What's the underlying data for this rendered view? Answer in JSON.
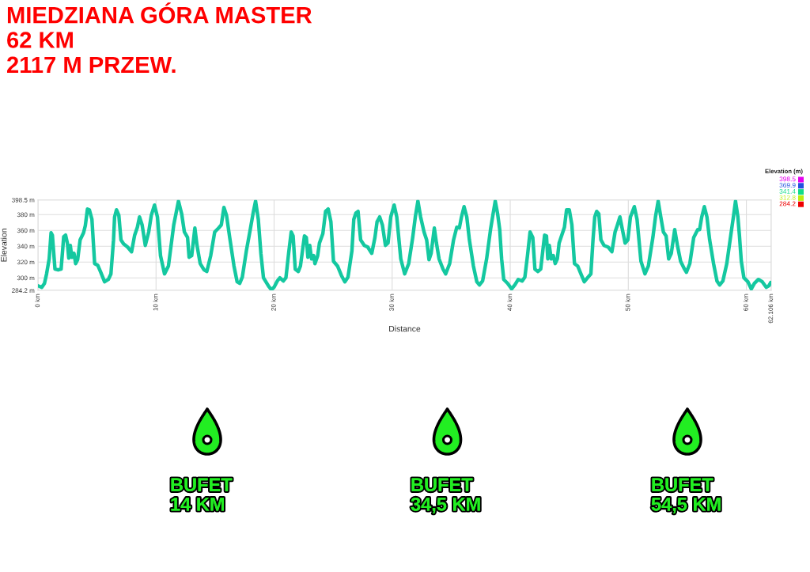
{
  "chart_data": {
    "type": "line",
    "title": "MIEDZIANA GÓRA MASTER\n62 KM\n2117 M PRZEW.",
    "xlabel": "Distance",
    "ylabel": "Elevation",
    "clabel": "Elevation (m)",
    "annotations": [
      "BUFET\n14 KM",
      "BUFET\n34,5 KM",
      "BUFET\n54,5 KM"
    ],
    "x": [
      0,
      0.32,
      0.55,
      0.73,
      0.95,
      1.11,
      1.22,
      1.44,
      1.71,
      1.96,
      2.18,
      2.34,
      2.49,
      2.61,
      2.74,
      2.87,
      3.05,
      3.19,
      3.36,
      3.57,
      3.86,
      4.01,
      4.19,
      4.35,
      4.57,
      4.8,
      5.06,
      5.29,
      5.64,
      5.96,
      6.18,
      6.4,
      6.49,
      6.65,
      6.85,
      7.03,
      7.25,
      7.59,
      7.93,
      8.19,
      8.42,
      8.6,
      8.82,
      9.09,
      9.38,
      9.6,
      9.87,
      10.12,
      10.38,
      10.72,
      11.05,
      11.5,
      11.9,
      12.17,
      12.4,
      12.67,
      12.8,
      13.02,
      13.29,
      13.47,
      13.74,
      14.07,
      14.3,
      14.63,
      14.97,
      15.3,
      15.53,
      15.75,
      15.97,
      16.24,
      16.6,
      16.87,
      17.09,
      17.31,
      17.65,
      17.98,
      18.25,
      18.43,
      18.66,
      18.88,
      19.1,
      19.55,
      19.77,
      19.99,
      20.27,
      20.49,
      20.78,
      21.0,
      21.23,
      21.45,
      21.61,
      21.79,
      22.05,
      22.23,
      22.57,
      22.73,
      22.86,
      23.02,
      23.17,
      23.35,
      23.46,
      23.69,
      23.84,
      24.13,
      24.36,
      24.58,
      24.81,
      25.03,
      25.37,
      25.7,
      25.99,
      26.26,
      26.59,
      26.75,
      26.93,
      27.11,
      27.33,
      27.64,
      27.93,
      28.27,
      28.54,
      28.72,
      28.94,
      29.17,
      29.43,
      29.65,
      29.88,
      30.17,
      30.39,
      30.73,
      31.06,
      31.4,
      31.74,
      31.96,
      32.18,
      32.41,
      32.7,
      32.92,
      33.12,
      33.3,
      33.57,
      33.75,
      33.97,
      34.31,
      34.53,
      34.87,
      35.2,
      35.47,
      35.69,
      35.87,
      36.09,
      36.32,
      36.54,
      36.88,
      37.17,
      37.39,
      37.66,
      38.0,
      38.33,
      38.55,
      38.73,
      38.93,
      39.11,
      39.27,
      39.45,
      39.78,
      40.12,
      40.39,
      40.68,
      41.01,
      41.24,
      41.46,
      41.68,
      41.91,
      42.09,
      42.35,
      42.58,
      42.91,
      43.07,
      43.18,
      43.31,
      43.47,
      43.65,
      43.81,
      43.99,
      44.14,
      44.41,
      44.59,
      44.77,
      45.0,
      45.22,
      45.44,
      45.71,
      46.04,
      46.27,
      46.6,
      46.83,
      47.01,
      47.16,
      47.32,
      47.5,
      47.68,
      47.94,
      48.28,
      48.61,
      48.88,
      49.06,
      49.29,
      49.46,
      49.73,
      49.96,
      50.18,
      50.51,
      50.74,
      51.07,
      51.41,
      51.7,
      52.08,
      52.3,
      52.53,
      52.75,
      52.97,
      53.2,
      53.42,
      53.64,
      53.93,
      54.16,
      54.43,
      54.76,
      54.92,
      55.21,
      55.54,
      55.88,
      56.04,
      56.22,
      56.44,
      56.66,
      56.89,
      57.22,
      57.51,
      57.74,
      58.01,
      58.34,
      58.68,
      58.9,
      59.08,
      59.28,
      59.41,
      59.57,
      59.79,
      60.13,
      60.42,
      60.68,
      61.02,
      61.35,
      61.69,
      61.91,
      62.06
    ],
    "series": [
      {
        "color": "#14c8a0",
        "values": [
          290,
          288,
          293,
          305,
          324,
          357,
          354,
          311,
          310,
          311,
          352,
          354,
          344,
          325,
          341,
          326,
          331,
          318,
          323,
          348,
          357,
          366,
          387,
          386,
          374,
          318,
          316,
          308,
          295,
          298,
          305,
          348,
          377,
          386,
          379,
          348,
          343,
          339,
          333,
          354,
          364,
          377,
          367,
          341,
          358,
          379,
          392,
          377,
          328,
          305,
          315,
          367,
          397,
          381,
          358,
          351,
          326,
          328,
          363,
          341,
          318,
          310,
          308,
          328,
          358,
          363,
          367,
          389,
          379,
          351,
          315,
          295,
          293,
          301,
          334,
          361,
          384,
          397,
          374,
          331,
          300,
          289,
          285,
          288,
          296,
          300,
          296,
          300,
          331,
          358,
          353,
          311,
          308,
          315,
          353,
          351,
          326,
          341,
          324,
          328,
          318,
          328,
          344,
          356,
          384,
          387,
          371,
          321,
          315,
          303,
          295,
          301,
          334,
          374,
          382,
          384,
          348,
          341,
          339,
          331,
          351,
          371,
          377,
          367,
          341,
          344,
          377,
          392,
          377,
          324,
          305,
          318,
          351,
          377,
          397,
          377,
          358,
          348,
          323,
          331,
          363,
          344,
          324,
          311,
          305,
          318,
          348,
          364,
          363,
          377,
          390,
          377,
          348,
          315,
          295,
          291,
          296,
          324,
          361,
          381,
          397,
          381,
          361,
          324,
          298,
          293,
          286,
          291,
          298,
          296,
          301,
          328,
          358,
          351,
          311,
          308,
          311,
          354,
          353,
          324,
          341,
          324,
          328,
          318,
          324,
          344,
          356,
          364,
          386,
          386,
          367,
          318,
          315,
          303,
          295,
          301,
          305,
          348,
          377,
          384,
          381,
          348,
          341,
          339,
          333,
          358,
          366,
          377,
          364,
          344,
          348,
          377,
          390,
          374,
          321,
          305,
          315,
          351,
          377,
          397,
          377,
          358,
          353,
          324,
          331,
          361,
          341,
          321,
          311,
          307,
          318,
          351,
          361,
          361,
          377,
          390,
          377,
          348,
          318,
          296,
          291,
          296,
          318,
          354,
          377,
          397,
          377,
          354,
          321,
          300,
          295,
          286,
          293,
          298,
          295,
          288,
          290,
          294
        ]
      }
    ],
    "clim": [
      284.2,
      398.5
    ],
    "cticks": [
      284.2,
      312.8,
      341.4,
      369.9,
      398.5
    ],
    "xlim": [
      0,
      62.106
    ],
    "ylim": [
      284.2,
      398.5
    ],
    "xticks": [
      {
        "value": 0,
        "label": "0 km"
      },
      {
        "value": 10,
        "label": "10 km"
      },
      {
        "value": 20,
        "label": "20 km"
      },
      {
        "value": 30,
        "label": "30 km"
      },
      {
        "value": 40,
        "label": "40 km"
      },
      {
        "value": 50,
        "label": "50 km"
      },
      {
        "value": 60,
        "label": "60 km"
      },
      {
        "value": 62.106,
        "label": "62.106 km"
      }
    ],
    "yticks": [
      {
        "value": 284.2,
        "label": "284.2 m"
      },
      {
        "value": 300,
        "label": "300 m"
      },
      {
        "value": 320,
        "label": "320 m"
      },
      {
        "value": 340,
        "label": "340 m"
      },
      {
        "value": 360,
        "label": "360 m"
      },
      {
        "value": 380,
        "label": "380 m"
      },
      {
        "value": 398.5,
        "label": "398.5 m"
      }
    ],
    "grid": true
  }
}
